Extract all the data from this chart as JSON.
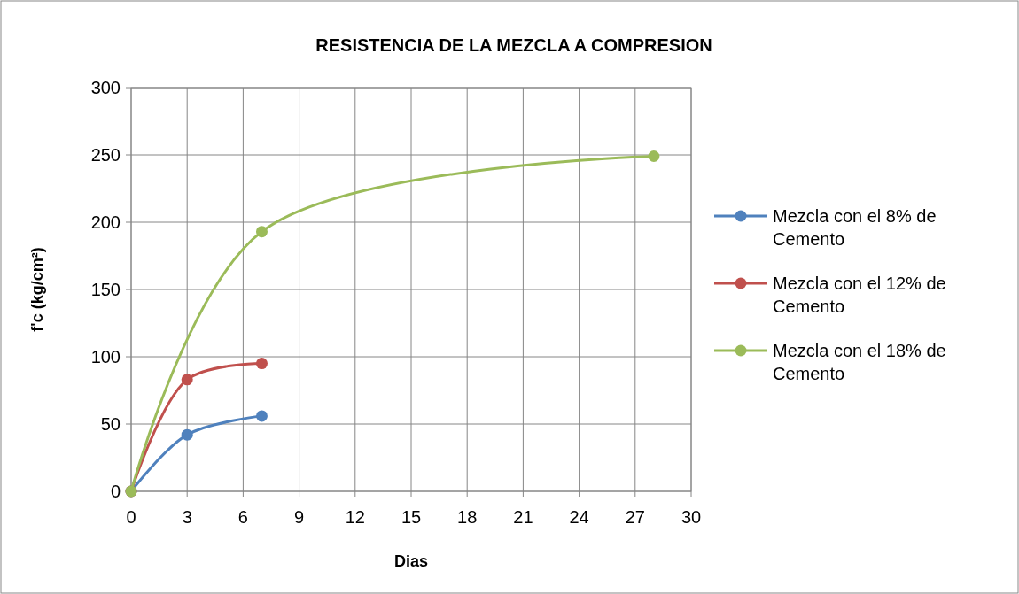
{
  "chart_data": {
    "type": "line",
    "title": "RESISTENCIA DE LA MEZCLA  A COMPRESION",
    "xlabel": "Dias",
    "ylabel": "f'c (kg/cm²)",
    "series": [
      {
        "name": "Mezcla con el 8% de Cemento",
        "color": "#4f81bd",
        "x": [
          0,
          3,
          7
        ],
        "values": [
          0,
          42,
          56
        ]
      },
      {
        "name": "Mezcla con el 12% de Cemento",
        "color": "#c0504d",
        "x": [
          0,
          3,
          7
        ],
        "values": [
          0,
          83,
          95
        ]
      },
      {
        "name": "Mezcla con el 18% de Cemento",
        "color": "#9bbb59",
        "x": [
          0,
          7,
          28
        ],
        "values": [
          0,
          193,
          249
        ]
      }
    ],
    "xlim": [
      0,
      30
    ],
    "xticks": [
      0,
      3,
      6,
      9,
      12,
      15,
      18,
      21,
      24,
      27,
      30
    ],
    "ylim": [
      0,
      300
    ],
    "yticks": [
      0,
      50,
      100,
      150,
      200,
      250,
      300
    ],
    "grid": true,
    "legend": "right",
    "marker": "circle",
    "line_style": "solid"
  }
}
